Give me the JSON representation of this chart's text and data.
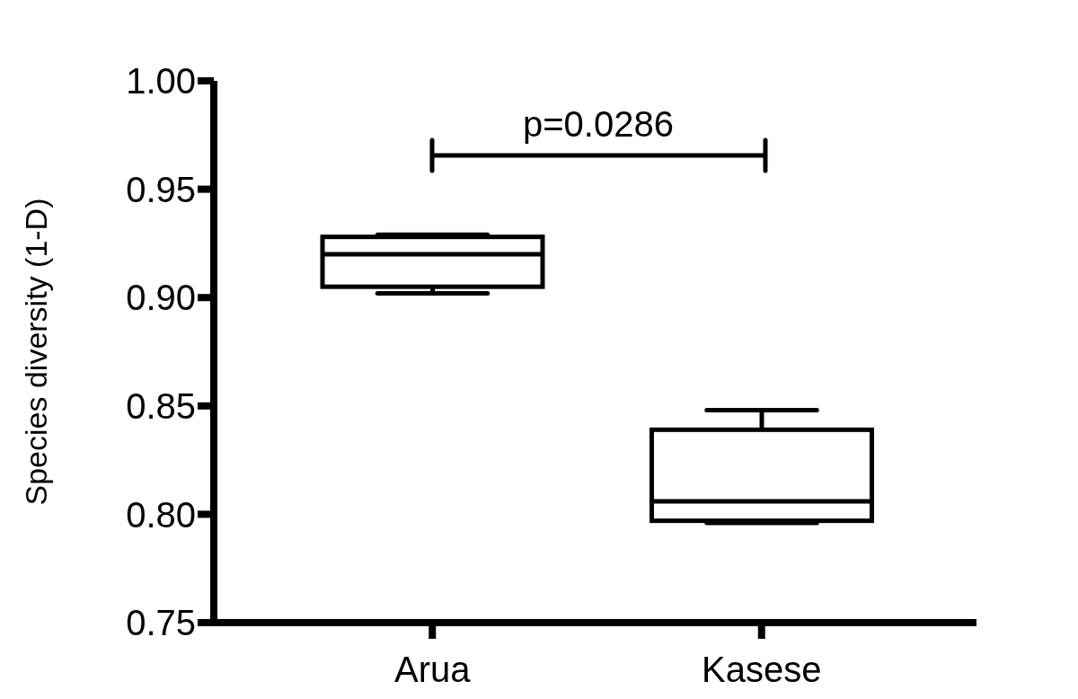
{
  "chart_data": {
    "type": "box",
    "ylabel": "Species diversity (1-D)",
    "categories": [
      "Arua",
      "Kasese"
    ],
    "boxes": [
      {
        "low": 0.902,
        "q1": 0.905,
        "median": 0.92,
        "q3": 0.928,
        "high": 0.929
      },
      {
        "low": 0.796,
        "q1": 0.797,
        "median": 0.806,
        "q3": 0.839,
        "high": 0.848
      }
    ],
    "color": "#000000",
    "ylim": [
      0.75,
      1.0
    ],
    "yticks": [
      {
        "value": 0.75,
        "label": "0.75"
      },
      {
        "value": 0.8,
        "label": "0.80"
      },
      {
        "value": 0.85,
        "label": "0.85"
      },
      {
        "value": 0.9,
        "label": "0.90"
      },
      {
        "value": 0.95,
        "label": "0.95"
      },
      {
        "value": 1.0,
        "label": "1.00"
      }
    ],
    "annotations": [
      "p=0.0286"
    ],
    "grid": false,
    "legend": false
  }
}
